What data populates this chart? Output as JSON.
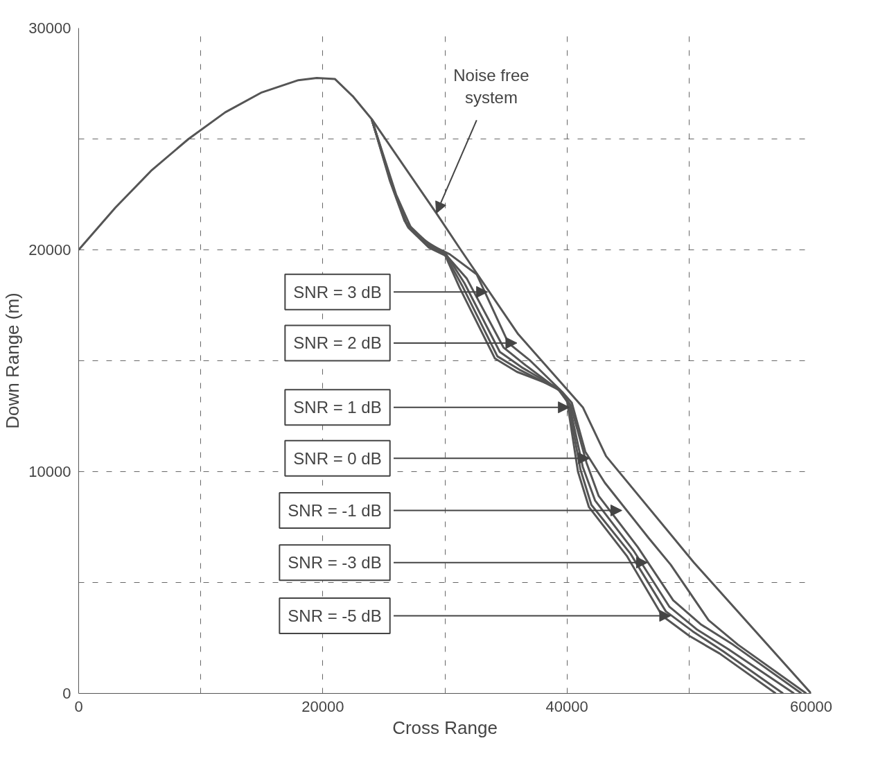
{
  "chart_data": {
    "type": "line",
    "xlabel": "Cross Range",
    "ylabel": "Down Range (m)",
    "xlim": [
      0,
      60000
    ],
    "ylim": [
      0,
      30000
    ],
    "xticks": [
      0,
      {
        "value": 10000,
        "label": null
      },
      20000,
      {
        "value": 30000,
        "label": null
      },
      40000,
      {
        "value": 50000,
        "label": null
      },
      60000
    ],
    "yticks": [
      0,
      {
        "value": 5000,
        "label": null
      },
      10000,
      {
        "value": 15000,
        "label": null
      },
      20000,
      {
        "value": 25000,
        "label": null
      },
      30000
    ],
    "grid": true,
    "line_style": "solid",
    "series": [
      {
        "color": "#555555",
        "x": [
          0,
          3000,
          6000,
          9000,
          12000,
          15000,
          18000,
          19500,
          21000,
          22500,
          24000,
          29300,
          31300,
          36000,
          41300,
          43200,
          50400,
          60000
        ],
        "values": [
          20000,
          21900,
          23600,
          25000,
          26200,
          27100,
          27650,
          27750,
          27700,
          26900,
          25900,
          21650,
          20000,
          16200,
          12900,
          10700,
          5900,
          0
        ]
      },
      {
        "color": "#555555",
        "x": [
          24000,
          26000,
          27300,
          28900,
          30400,
          32600,
          35200,
          37000,
          39600,
          40400,
          41500,
          43100,
          46700,
          48500,
          51600,
          54000,
          59600
        ],
        "values": [
          25900,
          22500,
          20900,
          20200,
          19800,
          18900,
          15800,
          15000,
          13600,
          13100,
          10900,
          9500,
          7000,
          5800,
          3300,
          2200,
          0
        ]
      },
      {
        "color": "#555555",
        "x": [
          24000,
          25800,
          27000,
          28700,
          30200,
          31800,
          34800,
          36600,
          39500,
          40300,
          41600,
          42600,
          45800,
          48700,
          51000,
          53600,
          59200
        ],
        "values": [
          25900,
          22700,
          21000,
          20100,
          19700,
          18700,
          15600,
          14800,
          13600,
          13000,
          10400,
          8900,
          6600,
          4200,
          3100,
          2200,
          0
        ]
      },
      {
        "color": "#555555",
        "x": [
          24000,
          25700,
          26900,
          28600,
          30100,
          31600,
          34500,
          36300,
          39400,
          40200,
          41300,
          42300,
          45500,
          48400,
          50600,
          53200,
          58600
        ],
        "values": [
          25900,
          22900,
          21100,
          20200,
          19800,
          18500,
          15400,
          14700,
          13700,
          13000,
          10200,
          8700,
          6400,
          3900,
          2900,
          2000,
          0
        ]
      },
      {
        "color": "#555555",
        "x": [
          24000,
          25600,
          26800,
          28500,
          30000,
          31400,
          34300,
          36100,
          39300,
          40100,
          41100,
          42000,
          45200,
          48100,
          50300,
          52800,
          57700
        ],
        "values": [
          25900,
          23000,
          21200,
          20300,
          19800,
          18400,
          15200,
          14600,
          13700,
          13100,
          10100,
          8500,
          6300,
          3700,
          2800,
          1900,
          0
        ]
      },
      {
        "color": "#555555",
        "x": [
          24000,
          25500,
          26700,
          28400,
          29900,
          31200,
          34100,
          35900,
          39200,
          40000,
          40900,
          41800,
          44900,
          47800,
          50000,
          52500,
          57100
        ],
        "values": [
          25900,
          23100,
          21300,
          20400,
          19900,
          18300,
          15100,
          14500,
          13800,
          13200,
          10000,
          8400,
          6200,
          3500,
          2600,
          1800,
          0
        ]
      }
    ],
    "annotations": [
      {
        "text": "Noise free\nsystem",
        "x": 29300,
        "y": 21650
      },
      {
        "text": "SNR = 3 dB",
        "x": 33500,
        "y": 18100
      },
      {
        "text": "SNR = 2 dB",
        "x": 35900,
        "y": 15800
      },
      {
        "text": "SNR = 1 dB",
        "x": 40200,
        "y": 12900
      },
      {
        "text": "SNR = 0 dB",
        "x": 41850,
        "y": 10600
      },
      {
        "text": "SNR = -1 dB",
        "x": 44500,
        "y": 8250
      },
      {
        "text": "SNR = -3 dB",
        "x": 46600,
        "y": 5900
      },
      {
        "text": "SNR = -5 dB",
        "x": 48500,
        "y": 3500
      }
    ]
  }
}
